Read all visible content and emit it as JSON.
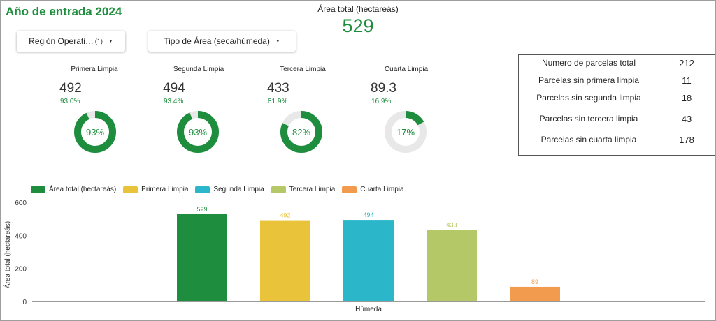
{
  "header": {
    "title": "Año de entrada 2024",
    "kpi_label": "Área total (hectareás)",
    "kpi_value": "529"
  },
  "filters": {
    "region_label": "Región Operati…",
    "region_count": "(1)",
    "area_label": "Tipo de Área (seca/húmeda)"
  },
  "gauges": [
    {
      "title": "Primera Limpia",
      "value": "492",
      "pct_text": "93.0%",
      "pct": 0.93,
      "donut_label": "93%"
    },
    {
      "title": "Segunda Limpia",
      "value": "494",
      "pct_text": "93.4%",
      "pct": 0.934,
      "donut_label": "93%"
    },
    {
      "title": "Tercera Limpia",
      "value": "433",
      "pct_text": "81.9%",
      "pct": 0.819,
      "donut_label": "82%"
    },
    {
      "title": "Cuarta Limpia",
      "value": "89.3",
      "pct_text": "16.9%",
      "pct": 0.169,
      "donut_label": "17%"
    }
  ],
  "summary": [
    {
      "label": "Numero de parcelas total",
      "value": "212"
    },
    {
      "label": "Parcelas sin primera limpia",
      "value": "11"
    },
    {
      "label": "Parcelas sin segunda limpia",
      "value": "18"
    },
    {
      "label": "Parcelas sin tercera limpia",
      "value": "43"
    },
    {
      "label": "Parcelas sin cuarta limpia",
      "value": "178"
    }
  ],
  "colors": {
    "green": "#1e8e3e",
    "yellow": "#e9c43b",
    "cyan": "#2bb7c9",
    "olive": "#b5c867",
    "orange": "#f29b4e",
    "track": "#e8e8e8"
  },
  "chart_data": {
    "type": "bar",
    "categories": [
      "Húmeda"
    ],
    "series": [
      {
        "name": "Área total (hectareás)",
        "values": [
          529
        ],
        "color": "#1e8e3e",
        "label": "529"
      },
      {
        "name": "Primera Limpia",
        "values": [
          492
        ],
        "color": "#e9c43b",
        "label": "492"
      },
      {
        "name": "Segunda Limpia",
        "values": [
          494
        ],
        "color": "#2bb7c9",
        "label": "494"
      },
      {
        "name": "Tercera Limpia",
        "values": [
          433
        ],
        "color": "#b5c867",
        "label": "433"
      },
      {
        "name": "Cuarta Limpia",
        "values": [
          89
        ],
        "color": "#f29b4e",
        "label": "89"
      }
    ],
    "ylabel": "Área total (hectareás)",
    "xlabel": "",
    "ylim": [
      0,
      600
    ],
    "yticks": [
      0,
      200,
      400,
      600
    ],
    "legend": "top-left",
    "grid": false
  }
}
